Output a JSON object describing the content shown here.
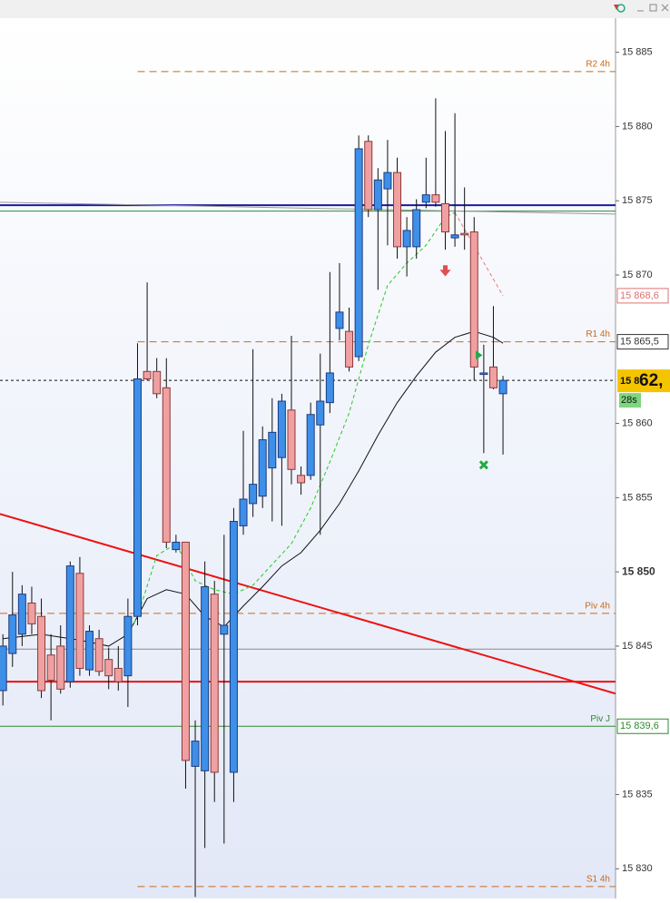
{
  "chart_data": {
    "type": "candlestick",
    "xlim": [
      -0.3,
      63.7
    ],
    "ylim": [
      15828,
      15887.3
    ],
    "yticks": [
      {
        "value": 15885,
        "label": "15 885"
      },
      {
        "value": 15880,
        "label": "15 880"
      },
      {
        "value": 15875,
        "label": "15 875"
      },
      {
        "value": 15870,
        "label": "15 870"
      },
      {
        "value": 15860,
        "label": "15 860"
      },
      {
        "value": 15855,
        "label": "15 855"
      },
      {
        "value": 15850,
        "label": "15 850",
        "bold": true
      },
      {
        "value": 15845,
        "label": "15 845"
      },
      {
        "value": 15835,
        "label": "15 835"
      },
      {
        "value": 15830,
        "label": "15 830"
      }
    ],
    "up_color": "#3d8fe8",
    "down_color": "#f0a0a0",
    "candles": {
      "open": [
        15842.0,
        15844.5,
        15845.8,
        15847.9,
        15847.0,
        15844.4,
        15845.0,
        15842.6,
        15849.9,
        15843.4,
        15845.5,
        15844.1,
        15843.5,
        15843.0,
        15847.0,
        15863.5,
        15863.5,
        15862.4,
        15851.5,
        15852.0,
        15836.9,
        15836.6,
        15848.5,
        15845.8,
        15836.5,
        15853.1,
        15854.6,
        15855.1,
        15857.0,
        15857.7,
        15860.9,
        15856.5,
        15856.5,
        15859.9,
        15861.4,
        15866.4,
        15866.2,
        15864.5,
        15879.0,
        15874.4,
        15875.8,
        15876.9,
        15871.9,
        15871.9,
        15874.9,
        15875.4,
        15874.8,
        15872.5,
        15872.8,
        15872.9,
        15863.3,
        15863.8,
        15862.0
      ],
      "high": [
        15845.8,
        15850.0,
        15849.1,
        15849.0,
        15848.2,
        15845.8,
        15846.4,
        15850.7,
        15851.0,
        15846.4,
        15846.1,
        15844.9,
        15845.0,
        15848.2,
        15865.4,
        15869.5,
        15864.4,
        15864.4,
        15852.5,
        15852.0,
        15840.0,
        15850.7,
        15849.4,
        15852.5,
        15854.3,
        15859.5,
        15865.0,
        15859.8,
        15861.7,
        15862.0,
        15865.9,
        15857.1,
        15861.4,
        15864.7,
        15870.2,
        15870.8,
        15867.8,
        15879.4,
        15879.4,
        15877.2,
        15879.1,
        15877.9,
        15873.9,
        15875.1,
        15877.9,
        15881.9,
        15879.7,
        15880.9,
        15875.9,
        15873.9,
        15865.3,
        15867.9,
        15863.2
      ],
      "low": [
        15841.0,
        15843.6,
        15845.0,
        15845.8,
        15841.5,
        15840.0,
        15841.8,
        15842.2,
        15843.0,
        15843.0,
        15843.0,
        15842.1,
        15842.0,
        15840.9,
        15846.4,
        15862.9,
        15861.7,
        15851.6,
        15851.3,
        15835.4,
        15828.1,
        15831.4,
        15834.5,
        15831.7,
        15834.5,
        15852.5,
        15853.7,
        15854.3,
        15853.4,
        15853.1,
        15855.9,
        15855.2,
        15856.2,
        15852.5,
        15860.7,
        15865.6,
        15863.5,
        15864.2,
        15873.9,
        15869.0,
        15872.0,
        15871.1,
        15869.9,
        15871.1,
        15874.5,
        15874.6,
        15871.7,
        15871.9,
        15871.7,
        15862.9,
        15858.0,
        15862.3,
        15857.9
      ],
      "close": [
        15845.0,
        15847.1,
        15848.5,
        15846.5,
        15842.0,
        15842.7,
        15842.1,
        15850.4,
        15843.5,
        15846.0,
        15843.3,
        15843.0,
        15842.6,
        15847.0,
        15863.0,
        15863.0,
        15862.0,
        15852.0,
        15852.0,
        15837.3,
        15838.6,
        15849.0,
        15836.5,
        15846.4,
        15853.4,
        15854.9,
        15855.9,
        15858.9,
        15859.4,
        15861.5,
        15856.9,
        15856.0,
        15860.6,
        15861.5,
        15863.4,
        15867.5,
        15863.8,
        15878.5,
        15874.4,
        15876.4,
        15876.9,
        15871.9,
        15873.0,
        15874.4,
        15875.4,
        15874.9,
        15872.9,
        15872.7,
        15872.7,
        15863.8,
        15863.4,
        15862.4,
        15862.9
      ]
    },
    "indicators": [
      {
        "color": "#111111",
        "dashed": false,
        "x": [
          0,
          4,
          8,
          11,
          13,
          15,
          17,
          19,
          21,
          23,
          25,
          27,
          29,
          31,
          33,
          35,
          37,
          39,
          41,
          43,
          45,
          47,
          49,
          51,
          52
        ],
        "values": [
          15845.5,
          15845.8,
          15845.4,
          15845.0,
          15845.8,
          15848.2,
          15848.8,
          15848.5,
          15847.0,
          15846.3,
          15847.7,
          15849.0,
          15850.4,
          15851.3,
          15852.8,
          15854.6,
          15856.8,
          15859.2,
          15861.4,
          15863.2,
          15864.8,
          15865.8,
          15866.2,
          15865.8,
          15865.4
        ]
      },
      {
        "color": "#22cc22",
        "dashed": true,
        "x": [
          13,
          14,
          16,
          18,
          20,
          22,
          24,
          26,
          28,
          30,
          32,
          34,
          36,
          38,
          40,
          42,
          44,
          46,
          47
        ],
        "values": [
          15845.8,
          15847.0,
          15851.1,
          15851.9,
          15849.4,
          15848.8,
          15848.5,
          15849.1,
          15850.5,
          15851.9,
          15854.3,
          15857.4,
          15860.7,
          15865.3,
          15869.3,
          15870.8,
          15872.0,
          15873.9,
          15874.2
        ]
      },
      {
        "color": "#ee7777",
        "dashed": true,
        "x": [
          47,
          52
        ],
        "values": [
          15874.2,
          15868.6
        ]
      }
    ],
    "trendlines": [
      {
        "x": [
          -0.3,
          63.7
        ],
        "values": [
          15853.9,
          15841.8
        ],
        "color": "#ee1111",
        "width": 2
      },
      {
        "x": [
          -0.3,
          63.7
        ],
        "values": [
          15874.9,
          15874.1
        ],
        "color": "#999999",
        "width": 1
      }
    ],
    "hlines": [
      {
        "value": 15874.7,
        "color": "#1a1a9e",
        "width": 2
      },
      {
        "value": 15874.3,
        "color": "#2e8b2e",
        "width": 1
      },
      {
        "value": 15844.8,
        "color": "#888888",
        "width": 1
      },
      {
        "value": 15842.6,
        "color": "#ee1111",
        "width": 2
      }
    ],
    "levels": [
      {
        "label": "R2 4h",
        "value": 15883.7,
        "from": 14,
        "color": "#cc6a1a",
        "dashed": true
      },
      {
        "label": "R1 4h",
        "value": 15865.5,
        "from": 14,
        "color": "#cc6a1a",
        "dashed": true
      },
      {
        "label": "Piv 4h",
        "value": 15847.2,
        "from": -0.3,
        "color": "#cc6a1a",
        "dashed": true
      },
      {
        "label": "S1 4h",
        "value": 15828.8,
        "from": 14,
        "color": "#cc6a1a",
        "dashed": true
      },
      {
        "label": "Piv J",
        "value": 15839.6,
        "from": -0.3,
        "color": "#2e8b2e",
        "dashed": false
      }
    ],
    "price_tags": [
      {
        "value": 15868.6,
        "label": "15 868,6",
        "color": "#e07070"
      },
      {
        "value": 15865.5,
        "label": "15 865,5",
        "color": "#333333"
      },
      {
        "value": 15839.6,
        "label": "15 839,6",
        "color": "#2e8b2e"
      }
    ],
    "current": {
      "value": 15862.9,
      "label_prefix": "15 8",
      "label_main": "62,",
      "timer": "28s"
    },
    "markers": [
      {
        "kind": "arrow-down",
        "x": 46,
        "value": 15870.2,
        "color": "#e05050"
      },
      {
        "kind": "arrow-right",
        "x": 49.5,
        "value": 15864.6,
        "color": "#22aa44"
      },
      {
        "kind": "cross",
        "x": 50,
        "value": 15857.2,
        "color": "#22aa44"
      }
    ]
  }
}
